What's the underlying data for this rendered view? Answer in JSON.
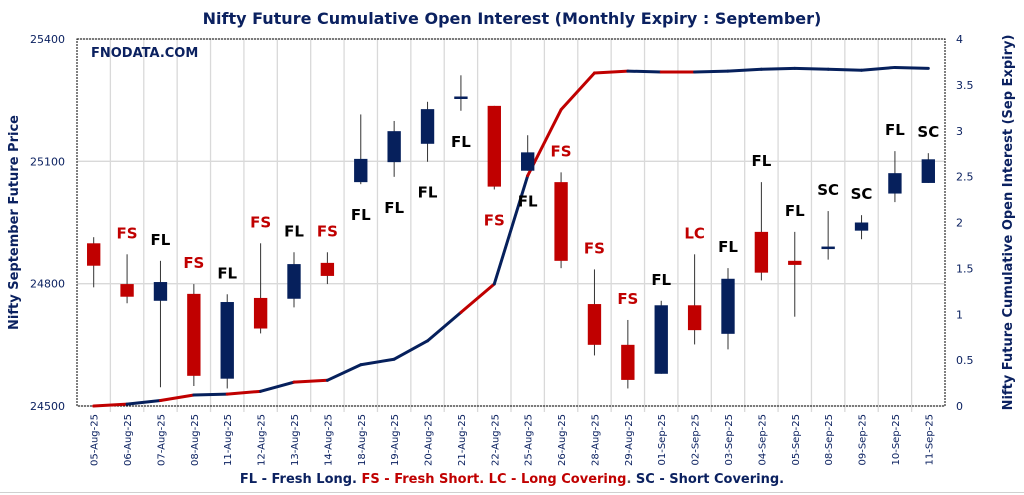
{
  "chart_data": {
    "type": "candlestick+line",
    "title": "Nifty Future Cumulative Open Interest (Monthly Expiry : September)",
    "watermark": "FNODATA.COM",
    "ylabel_left": "Nifty September Future Price",
    "ylabel_right": "Nifty Future Cumulative Open Interest (Sep Expiry)",
    "ylim_left": [
      24500,
      25400
    ],
    "yticks_left": [
      "24500",
      "24800",
      "25100",
      "25400"
    ],
    "ylim_right": [
      0,
      4
    ],
    "yticks_right": [
      "0",
      "0.5",
      "1",
      "1.5",
      "2",
      "2.5",
      "3",
      "3.5",
      "4"
    ],
    "grid": true,
    "colors": {
      "bull": "#06205c",
      "bear": "#c00000",
      "text": "#0b2160",
      "label_fl_sc": "#000000"
    },
    "categories": [
      "05-Aug-25",
      "06-Aug-25",
      "07-Aug-25",
      "08-Aug-25",
      "11-Aug-25",
      "12-Aug-25",
      "13-Aug-25",
      "14-Aug-25",
      "18-Aug-25",
      "19-Aug-25",
      "20-Aug-25",
      "21-Aug-25",
      "22-Aug-25",
      "25-Aug-25",
      "26-Aug-25",
      "28-Aug-25",
      "29-Aug-25",
      "01-Sep-25",
      "02-Sep-25",
      "03-Sep-25",
      "04-Sep-25",
      "05-Sep-25",
      "08-Sep-25",
      "09-Sep-25",
      "10-Sep-25",
      "11-Sep-25"
    ],
    "open": [
      24899,
      24799,
      24758,
      24775,
      24567,
      24765,
      24763,
      24851,
      25049,
      25098,
      25143,
      25256,
      25236,
      25077,
      25049,
      24750,
      24650,
      24579,
      24747,
      24677,
      24927,
      24856,
      24887,
      24930,
      25021,
      25047
    ],
    "high": [
      24914,
      24872,
      24856,
      24799,
      24774,
      24899,
      24877,
      24877,
      25215,
      25199,
      25246,
      25311,
      25236,
      25164,
      25073,
      24835,
      24711,
      24758,
      24872,
      24838,
      25049,
      24927,
      24978,
      24968,
      25125,
      25120
    ],
    "low": [
      24791,
      24752,
      24546,
      24549,
      24543,
      24678,
      24742,
      24799,
      25044,
      25062,
      25099,
      25224,
      25031,
      25077,
      24838,
      24624,
      24543,
      24579,
      24651,
      24639,
      24808,
      24719,
      24859,
      24909,
      25000,
      25047
    ],
    "close": [
      24844,
      24768,
      24804,
      24574,
      24755,
      24690,
      24848,
      24819,
      25106,
      25174,
      25228,
      25259,
      25038,
      25122,
      24856,
      24650,
      24564,
      24747,
      24686,
      24812,
      24827,
      24846,
      24891,
      24950,
      25071,
      25105
    ],
    "oi_series": [
      0.0,
      0.02,
      0.06,
      0.12,
      0.13,
      0.16,
      0.26,
      0.28,
      0.45,
      0.51,
      0.71,
      1.02,
      1.33,
      2.51,
      3.23,
      3.63,
      3.65,
      3.64,
      3.64,
      3.65,
      3.67,
      3.68,
      3.67,
      3.66,
      3.69,
      3.68
    ],
    "labels": [
      "",
      "FS",
      "FL",
      "FS",
      "FL",
      "FS",
      "FL",
      "FS",
      "FL",
      "FL",
      "FL",
      "FL",
      "FS",
      "FL",
      "FS",
      "FS",
      "FS",
      "FL",
      "LC",
      "FL",
      "FL",
      "FL",
      "SC",
      "SC",
      "FL",
      "SC"
    ],
    "label_position": [
      "",
      "above",
      "above",
      "above",
      "above",
      "above",
      "above",
      "above",
      "below",
      "below",
      "below",
      "below",
      "below",
      "below",
      "above",
      "above",
      "above",
      "above",
      "above",
      "above",
      "above",
      "above",
      "above",
      "above",
      "above",
      "above"
    ]
  },
  "legend": {
    "fl": "FL - Fresh Long.",
    "fs": "FS - Fresh Short.",
    "lc": "LC - Long Covering",
    "dot": ".",
    "sc": "SC - Short Covering."
  }
}
